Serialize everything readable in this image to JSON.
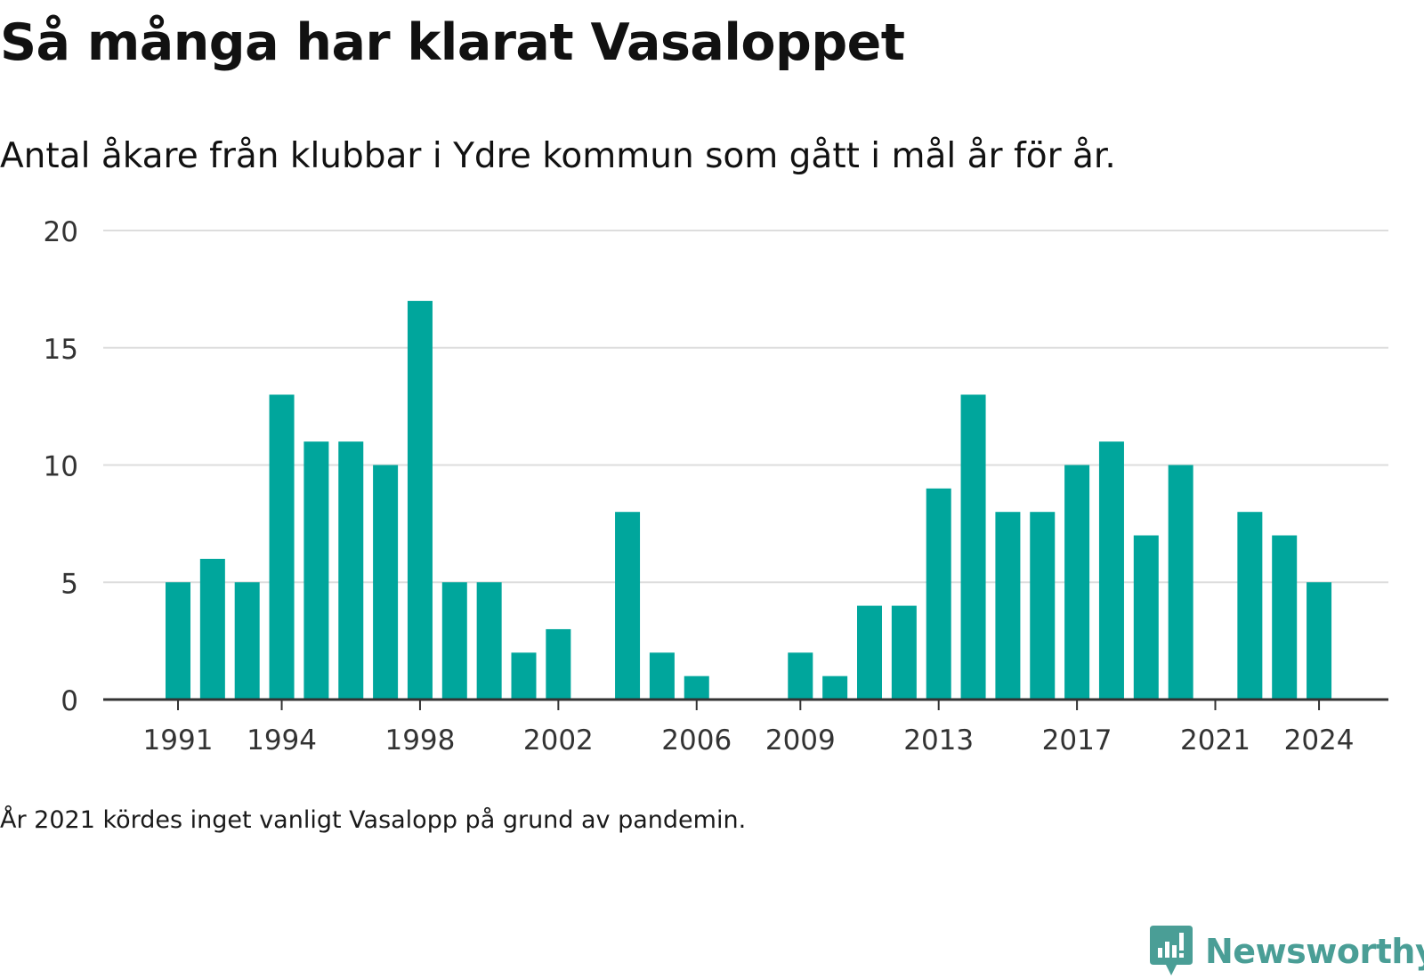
{
  "header": {
    "title": "Så många har klarat Vasaloppet",
    "subtitle": "Antal åkare från klubbar i Ydre kommun som gått i mål år för år."
  },
  "footer": {
    "note": "År 2021 kördes inget vanligt Vasalopp på grund av pandemin.",
    "brand": "Newsworthy"
  },
  "colors": {
    "bar": "#00a69c",
    "grid": "#dddddd",
    "axis": "#333333",
    "text": "#333333",
    "brand": "#4a9e96"
  },
  "chart_data": {
    "type": "bar",
    "categories": [
      1991,
      1992,
      1993,
      1994,
      1995,
      1996,
      1997,
      1998,
      1999,
      2000,
      2001,
      2002,
      2003,
      2004,
      2005,
      2006,
      2007,
      2008,
      2009,
      2010,
      2011,
      2012,
      2013,
      2014,
      2015,
      2016,
      2017,
      2018,
      2019,
      2020,
      2021,
      2022,
      2023,
      2024
    ],
    "values": [
      5,
      6,
      5,
      13,
      11,
      11,
      10,
      17,
      5,
      5,
      2,
      3,
      0,
      8,
      2,
      1,
      0,
      0,
      2,
      1,
      4,
      4,
      9,
      13,
      8,
      8,
      10,
      11,
      7,
      10,
      0,
      8,
      7,
      5
    ],
    "x_tick_labels": [
      "1991",
      "1994",
      "1998",
      "2002",
      "2006",
      "2009",
      "2013",
      "2017",
      "2021",
      "2024"
    ],
    "y_ticks": [
      0,
      5,
      10,
      15,
      20
    ],
    "ylim": [
      0,
      20
    ],
    "title": "Så många har klarat Vasaloppet",
    "subtitle": "Antal åkare från klubbar i Ydre kommun som gått i mål år för år.",
    "xlabel": "",
    "ylabel": "",
    "grid": true,
    "legend": "none"
  }
}
